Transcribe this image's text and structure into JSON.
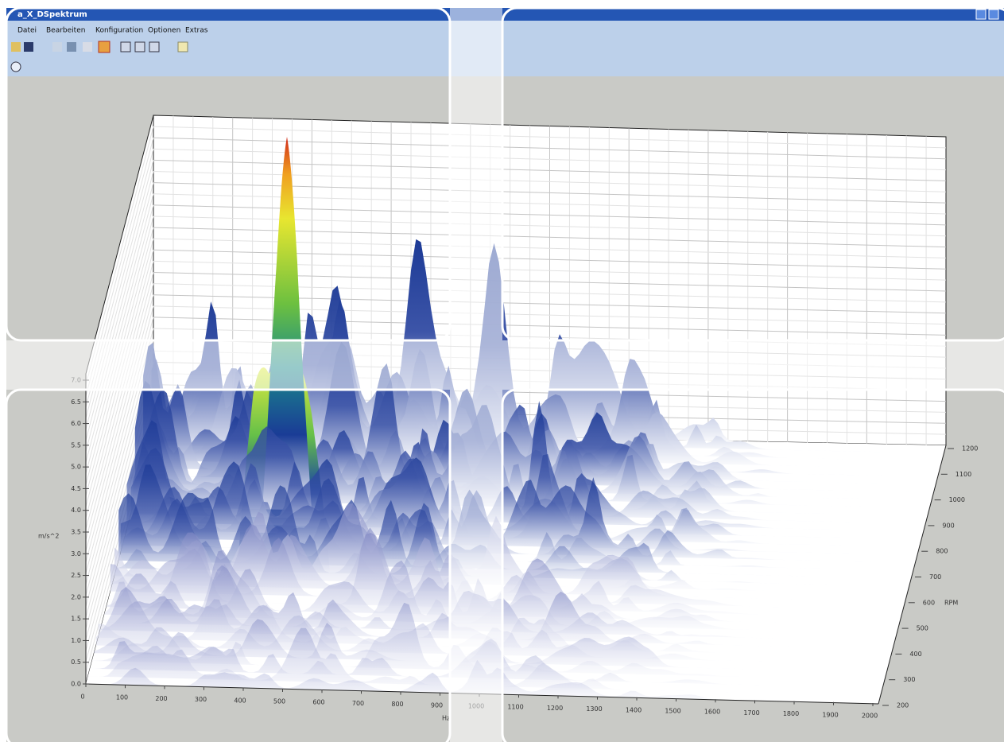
{
  "window": {
    "title": "a_X_DSpektrum"
  },
  "menu": [
    "Datei",
    "Bearbeiten",
    "Konfiguration",
    "Optionen",
    "Extras"
  ],
  "plot": {
    "z_label": "m/s^2",
    "z_ticks": [
      "0.0",
      "0.5",
      "1.0",
      "1.5",
      "2.0",
      "2.5",
      "3.0",
      "3.5",
      "4.0",
      "4.5",
      "5.0",
      "5.5",
      "6.0",
      "6.5",
      "7.0"
    ],
    "x_label": "Hz",
    "x_ticks": [
      "0",
      "100",
      "200",
      "300",
      "400",
      "500",
      "600",
      "700",
      "800",
      "900",
      "1000",
      "1100",
      "1200",
      "1300",
      "1400",
      "1500",
      "1600",
      "1700",
      "1800",
      "1900",
      "2000"
    ],
    "rpm_label": "RPM",
    "rpm_ticks": [
      "200",
      "300",
      "400",
      "500",
      "600",
      "700",
      "800",
      "900",
      "1000",
      "1100",
      "1200"
    ]
  }
}
